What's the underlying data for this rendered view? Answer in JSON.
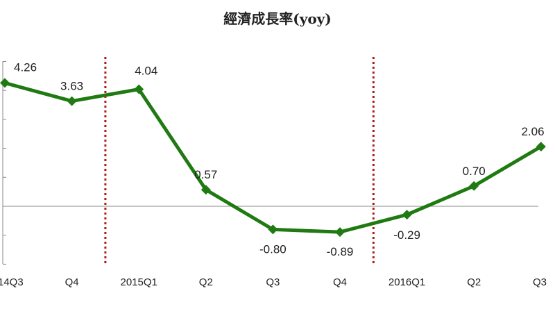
{
  "chart_data": {
    "type": "line",
    "title": "經濟成長率(yoy)",
    "categories": [
      "14Q3",
      "Q4",
      "2015Q1",
      "Q2",
      "Q3",
      "Q4",
      "2016Q1",
      "Q2",
      "Q3"
    ],
    "series": [
      {
        "values": [
          4.26,
          3.63,
          4.04,
          0.57,
          -0.8,
          -0.89,
          -0.29,
          0.7,
          2.06
        ],
        "data_labels": [
          "4.26",
          "3.63",
          "4.04",
          "0.57",
          "-0.80",
          "-0.89",
          "-0.29",
          "0.70",
          "2.06"
        ],
        "color": "#1f7a12",
        "marker": "diamond"
      }
    ],
    "ylim": [
      -2,
      5
    ],
    "year_separators_after": [
      "Q4",
      "Q4"
    ],
    "separator_color": "#b01c1c",
    "axis_color": "#888888",
    "grid": false,
    "legend": "none"
  }
}
